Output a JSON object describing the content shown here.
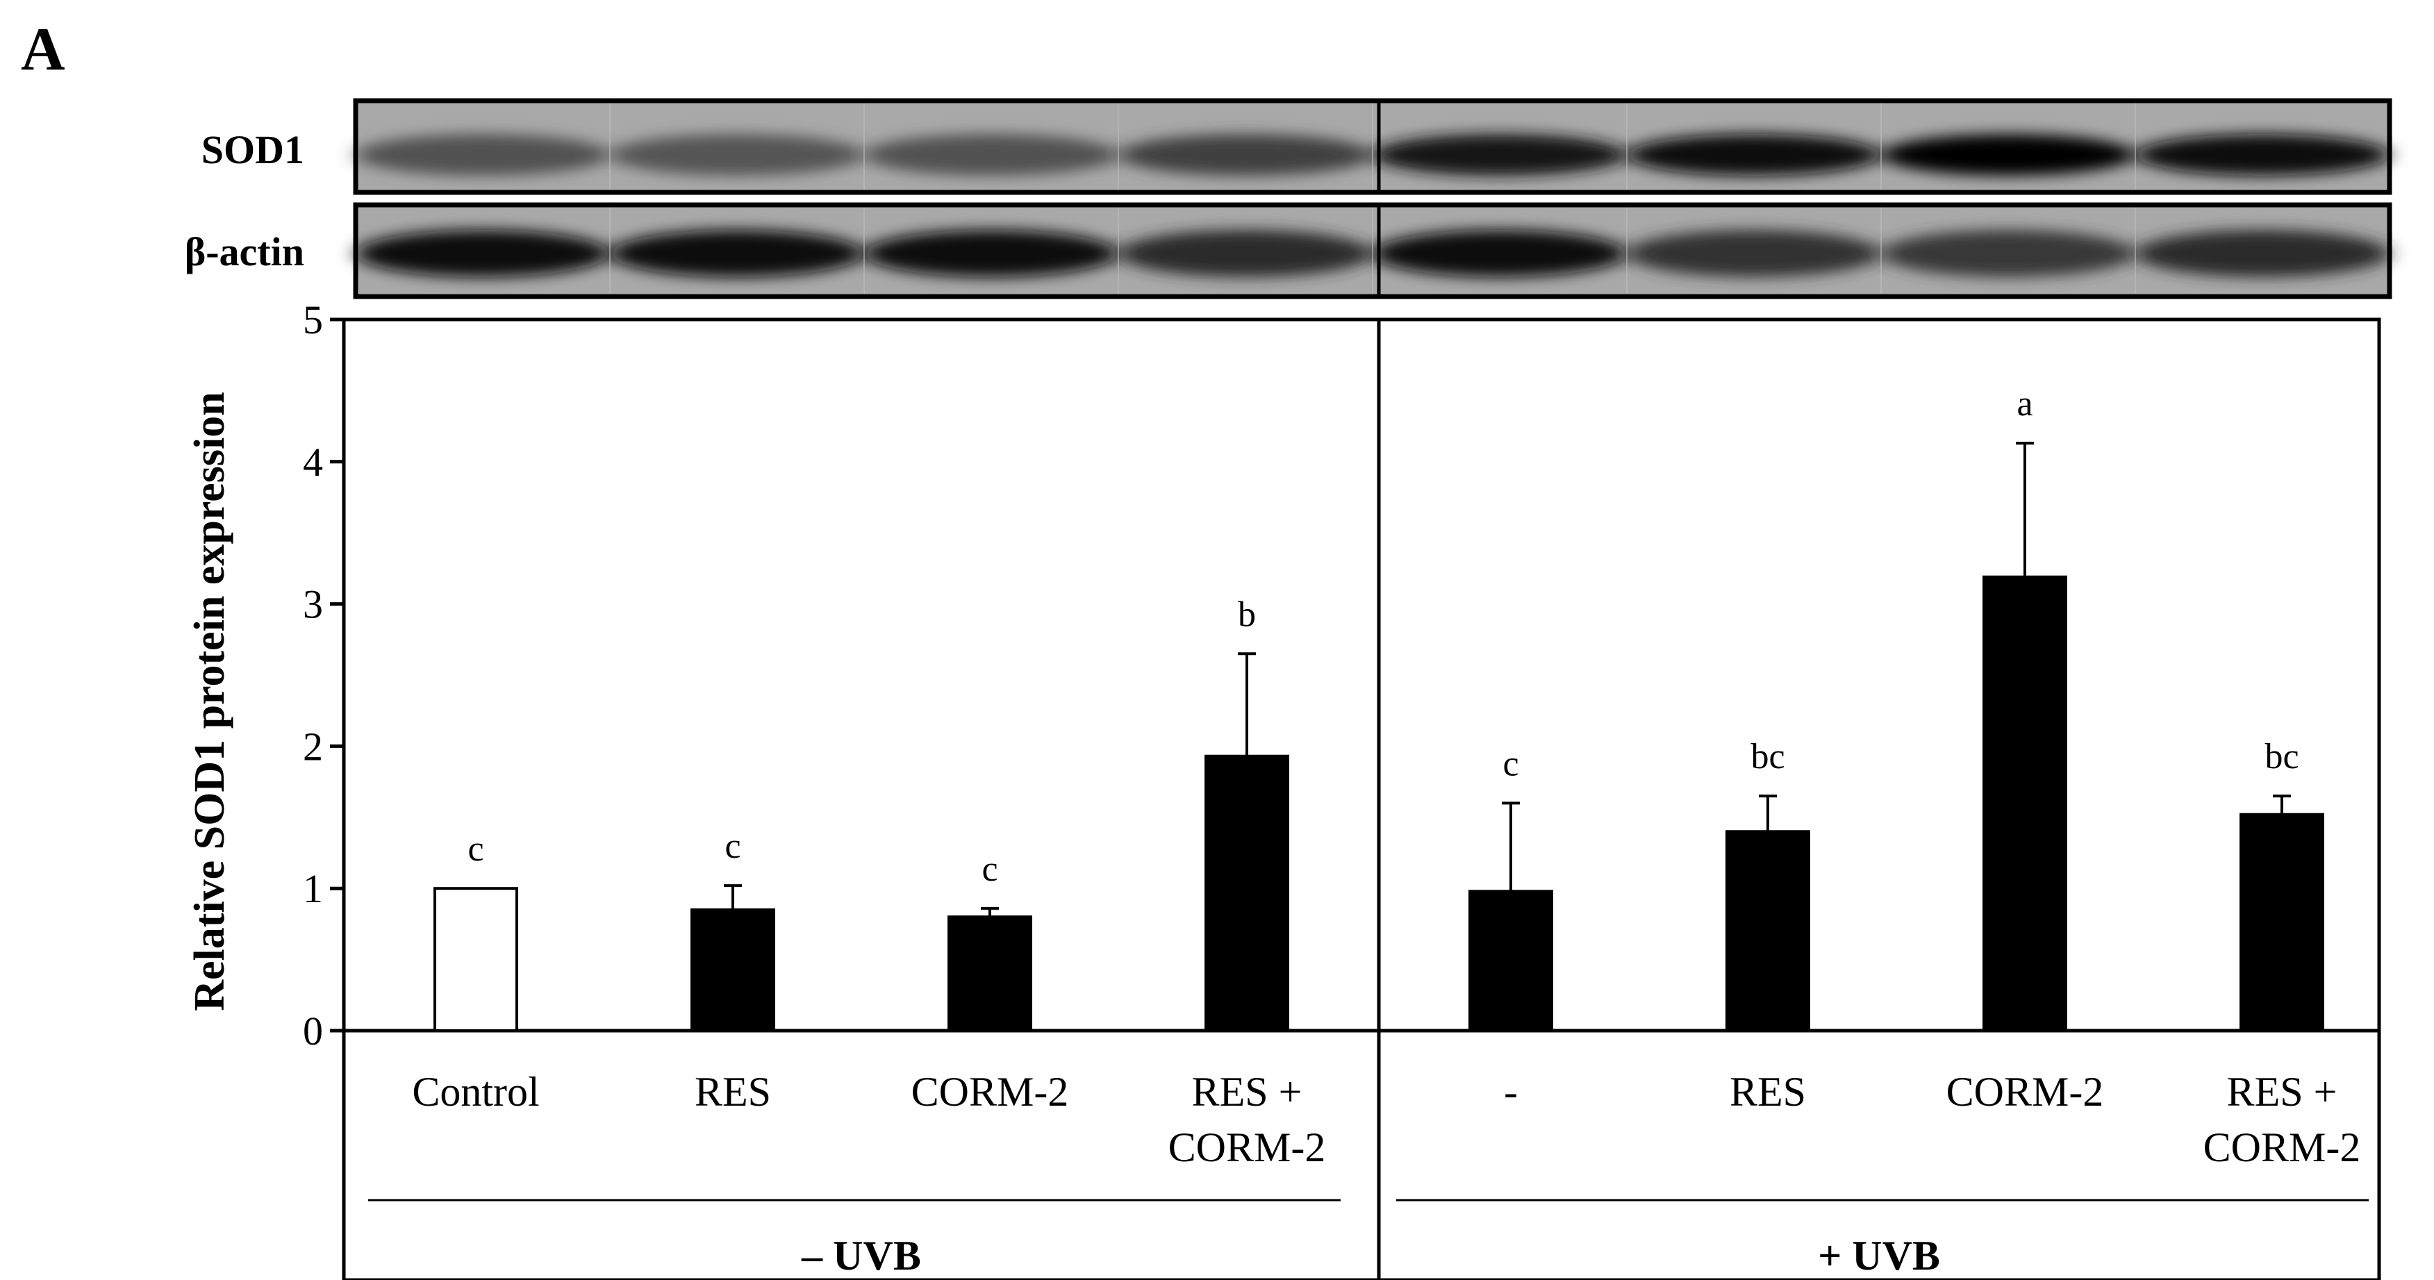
{
  "panel_label": "A",
  "blots": {
    "sod1_label": "SOD1",
    "actin_label": "β-actin",
    "sod1_intensity": [
      0.42,
      0.4,
      0.42,
      0.55,
      0.85,
      0.9,
      1.0,
      0.92
    ],
    "actin_intensity": [
      0.9,
      0.95,
      0.95,
      0.7,
      0.9,
      0.65,
      0.6,
      0.7
    ]
  },
  "groups": [
    {
      "label": "– UVB"
    },
    {
      "label": "+ UVB"
    }
  ],
  "chart_data": {
    "type": "bar",
    "ylabel": "Relative SOD1 protein expression",
    "ylim": [
      0,
      5
    ],
    "yticks": [
      "0",
      "1",
      "2",
      "3",
      "4",
      "5"
    ],
    "categories": [
      {
        "line1": "Control",
        "line2": ""
      },
      {
        "line1": "RES",
        "line2": ""
      },
      {
        "line1": "CORM-2",
        "line2": ""
      },
      {
        "line1": "RES +",
        "line2": "CORM-2"
      },
      {
        "line1": "-",
        "line2": ""
      },
      {
        "line1": "RES",
        "line2": ""
      },
      {
        "line1": "CORM-2",
        "line2": ""
      },
      {
        "line1": "RES +",
        "line2": "CORM-2"
      }
    ],
    "values": [
      1.0,
      0.85,
      0.8,
      1.93,
      0.98,
      1.4,
      3.19,
      1.52
    ],
    "errors": [
      0,
      0.17,
      0.06,
      0.72,
      0.62,
      0.25,
      0.94,
      0.13
    ],
    "letters": [
      "c",
      "c",
      "c",
      "b",
      "c",
      "bc",
      "a",
      "bc"
    ],
    "bar_colors": [
      "#ffffff",
      "#000000",
      "#000000",
      "#000000",
      "#000000",
      "#000000",
      "#000000",
      "#000000"
    ]
  }
}
